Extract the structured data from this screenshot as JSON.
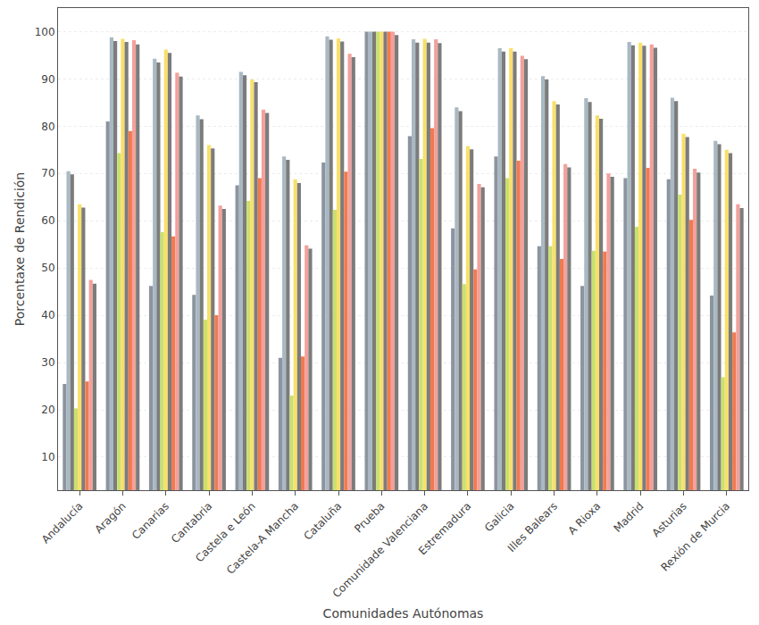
{
  "chart_data": {
    "type": "bar",
    "x_label": "Comunidades Autónomas",
    "y_label": "Porcentaxe de Rendición",
    "categories": [
      "Andalucía",
      "Aragón",
      "Canarias",
      "Cantabria",
      "Castela e León",
      "Castela-A Mancha",
      "Cataluña",
      "Prueba",
      "Comunidade Valenciana",
      "Estremadura",
      "Galicia",
      "Illes Balears",
      "A Rioxa",
      "Madrid",
      "Asturias",
      "Rexión de Murcia"
    ],
    "series": [
      {
        "color": "#8c949f",
        "values": [
          25.5,
          81,
          46.2,
          44.3,
          67.5,
          31,
          72.3,
          100,
          77.9,
          58.4,
          73.6,
          54.6,
          46.2,
          69,
          68.8,
          44.2
        ]
      },
      {
        "color": "#a9b9c3",
        "values": [
          70.5,
          98.8,
          94.3,
          82.3,
          91.5,
          73.6,
          99,
          100,
          98.4,
          84,
          96.5,
          90.6,
          85.9,
          97.8,
          86,
          76.9
        ]
      },
      {
        "color": "#7c7c7c",
        "values": [
          69.8,
          98,
          93.5,
          81.5,
          90.8,
          72.9,
          98.3,
          100,
          97.7,
          83.2,
          95.8,
          89.9,
          85.1,
          97.1,
          85.3,
          76.2
        ]
      },
      {
        "color": "#c9e070",
        "values": [
          20.3,
          74.3,
          57.6,
          39.1,
          64.2,
          23,
          62.3,
          100,
          73.1,
          46.6,
          69,
          54.6,
          53.6,
          58.7,
          65.5,
          26.9
        ]
      },
      {
        "color": "#f8e06a",
        "values": [
          63.5,
          98.5,
          96.2,
          76,
          89.9,
          68.8,
          98.6,
          100,
          98.5,
          75.8,
          96.5,
          85.3,
          82.3,
          97.7,
          78.4,
          75
        ]
      },
      {
        "color": "#7c7c7c",
        "values": [
          62.8,
          97.8,
          95.5,
          75.3,
          89.3,
          68,
          97.9,
          100,
          97.7,
          75.1,
          95.8,
          84.6,
          81.6,
          97,
          77.7,
          74.3
        ]
      },
      {
        "color": "#f07a50",
        "values": [
          26,
          79,
          56.7,
          40,
          69,
          31.3,
          70.4,
          100,
          79.6,
          49.7,
          72.7,
          51.9,
          53.5,
          71.2,
          60.2,
          36.4
        ]
      },
      {
        "color": "#f3a19c",
        "values": [
          47.5,
          98.2,
          91.3,
          63.2,
          83.5,
          54.8,
          95.3,
          100,
          98.4,
          67.8,
          94.9,
          72,
          70,
          97.3,
          71,
          63.5
        ]
      },
      {
        "color": "#7c7c7c",
        "values": [
          46.7,
          97.3,
          90.5,
          62.5,
          82.8,
          54.1,
          94.6,
          99.3,
          97.6,
          67.1,
          94.2,
          71.3,
          69.3,
          96.6,
          70.2,
          62.7
        ]
      }
    ],
    "ylim": [
      3,
      105
    ],
    "yticks": [
      10,
      20,
      30,
      40,
      50,
      60,
      70,
      80,
      90,
      100
    ],
    "grid": true
  }
}
